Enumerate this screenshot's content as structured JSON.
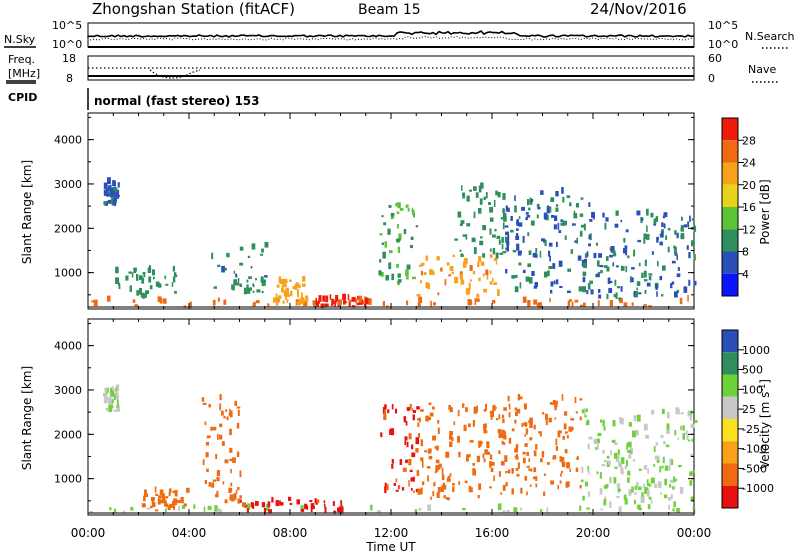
{
  "header": {
    "station": "Zhongshan Station (fitACF)",
    "beam": "Beam 15",
    "date": "24/Nov/2016"
  },
  "noise_panel": {
    "left_label": "N.Sky",
    "right_label": "N.Search",
    "left_ticks": [
      "10^5",
      "10^0"
    ],
    "right_ticks": [
      "10^5",
      "10^0"
    ]
  },
  "freq_panel": {
    "left_label_lines": [
      "Freq.",
      "[MHz]"
    ],
    "right_label": "Nave",
    "left_ticks": [
      "18",
      "8"
    ],
    "right_ticks": [
      "60",
      "0"
    ]
  },
  "cpid": {
    "label": "CPID",
    "text": "normal (fast stereo) 153"
  },
  "xaxis": {
    "label": "Time UT",
    "ticks": [
      "00:00",
      "04:00",
      "08:00",
      "12:00",
      "16:00",
      "20:00",
      "00:00"
    ]
  },
  "colors": {
    "power": [
      "#0a14ff",
      "#2a4fb8",
      "#2f8f5c",
      "#5cc436",
      "#e8d21a",
      "#f7a21a",
      "#f06a12",
      "#ee1a0a"
    ],
    "velocity": [
      "#e81010",
      "#f06a12",
      "#f7a21a",
      "#fbe01e",
      "#c8c8c8",
      "#6fd13a",
      "#2f8f5c",
      "#2a4fb8"
    ]
  },
  "chart_data": [
    {
      "type": "heatmap",
      "title": "",
      "xlabel": "Time UT",
      "ylabel": "Slant Range [km]",
      "xlim": [
        0,
        24
      ],
      "ylim": [
        180,
        4600
      ],
      "yticks": [
        "1000",
        "2000",
        "3000",
        "4000"
      ],
      "colorbar": {
        "label": "Power [dB]",
        "ticks": [
          "4",
          "8",
          "12",
          "16",
          "20",
          "24",
          "28"
        ],
        "range": [
          0,
          32
        ]
      },
      "series": [
        {
          "time_range": [
            0.0,
            24.0
          ],
          "range_km": [
            200,
            350
          ],
          "value": 26
        },
        {
          "time_range": [
            0.6,
            1.2
          ],
          "range_km": [
            2500,
            3000
          ],
          "value": 7
        },
        {
          "time_range": [
            1.0,
            3.5
          ],
          "range_km": [
            350,
            1100
          ],
          "value": 10
        },
        {
          "time_range": [
            4.8,
            7.0
          ],
          "range_km": [
            500,
            1600
          ],
          "value": 9
        },
        {
          "time_range": [
            7.3,
            8.6
          ],
          "range_km": [
            250,
            800
          ],
          "value": 22
        },
        {
          "time_range": [
            9.0,
            11.0
          ],
          "range_km": [
            200,
            400
          ],
          "value": 29
        },
        {
          "time_range": [
            11.5,
            13.0
          ],
          "range_km": [
            700,
            2500
          ],
          "value": 12
        },
        {
          "time_range": [
            13.0,
            16.2
          ],
          "range_km": [
            400,
            1400
          ],
          "value": 23
        },
        {
          "time_range": [
            14.5,
            16.5
          ],
          "range_km": [
            1200,
            2900
          ],
          "value": 10
        },
        {
          "time_range": [
            16.5,
            20.0
          ],
          "range_km": [
            500,
            2800
          ],
          "value": 8
        },
        {
          "time_range": [
            20.0,
            24.0
          ],
          "range_km": [
            300,
            2300
          ],
          "value": 8
        }
      ]
    },
    {
      "type": "heatmap",
      "title": "",
      "xlabel": "Time UT",
      "ylabel": "Slant Range [km]",
      "xlim": [
        0,
        24
      ],
      "ylim": [
        180,
        4600
      ],
      "yticks": [
        "1000",
        "2000",
        "3000",
        "4000"
      ],
      "colorbar": {
        "label": "Velocity [m s^-1]",
        "ticks": [
          "1000",
          "500",
          "100",
          "25",
          "-25",
          "-100",
          "-500",
          "-1000"
        ]
      },
      "series": [
        {
          "time_range": [
            0.0,
            24.0
          ],
          "range_km": [
            200,
            320
          ],
          "value": 100
        },
        {
          "time_range": [
            0.6,
            1.2
          ],
          "range_km": [
            2500,
            3000
          ],
          "value": 100
        },
        {
          "time_range": [
            2.0,
            4.0
          ],
          "range_km": [
            250,
            700
          ],
          "value": -300
        },
        {
          "time_range": [
            4.5,
            6.0
          ],
          "range_km": [
            400,
            2800
          ],
          "value": -200
        },
        {
          "time_range": [
            6.0,
            10.0
          ],
          "range_km": [
            200,
            500
          ],
          "value": -700
        },
        {
          "time_range": [
            11.5,
            13.0
          ],
          "range_km": [
            600,
            2600
          ],
          "value": -600
        },
        {
          "time_range": [
            13.0,
            16.5
          ],
          "range_km": [
            500,
            2700
          ],
          "value": -300
        },
        {
          "time_range": [
            16.5,
            19.5
          ],
          "range_km": [
            600,
            2800
          ],
          "value": -150
        },
        {
          "time_range": [
            19.5,
            24.0
          ],
          "range_km": [
            300,
            2500
          ],
          "value": 100
        }
      ]
    }
  ]
}
